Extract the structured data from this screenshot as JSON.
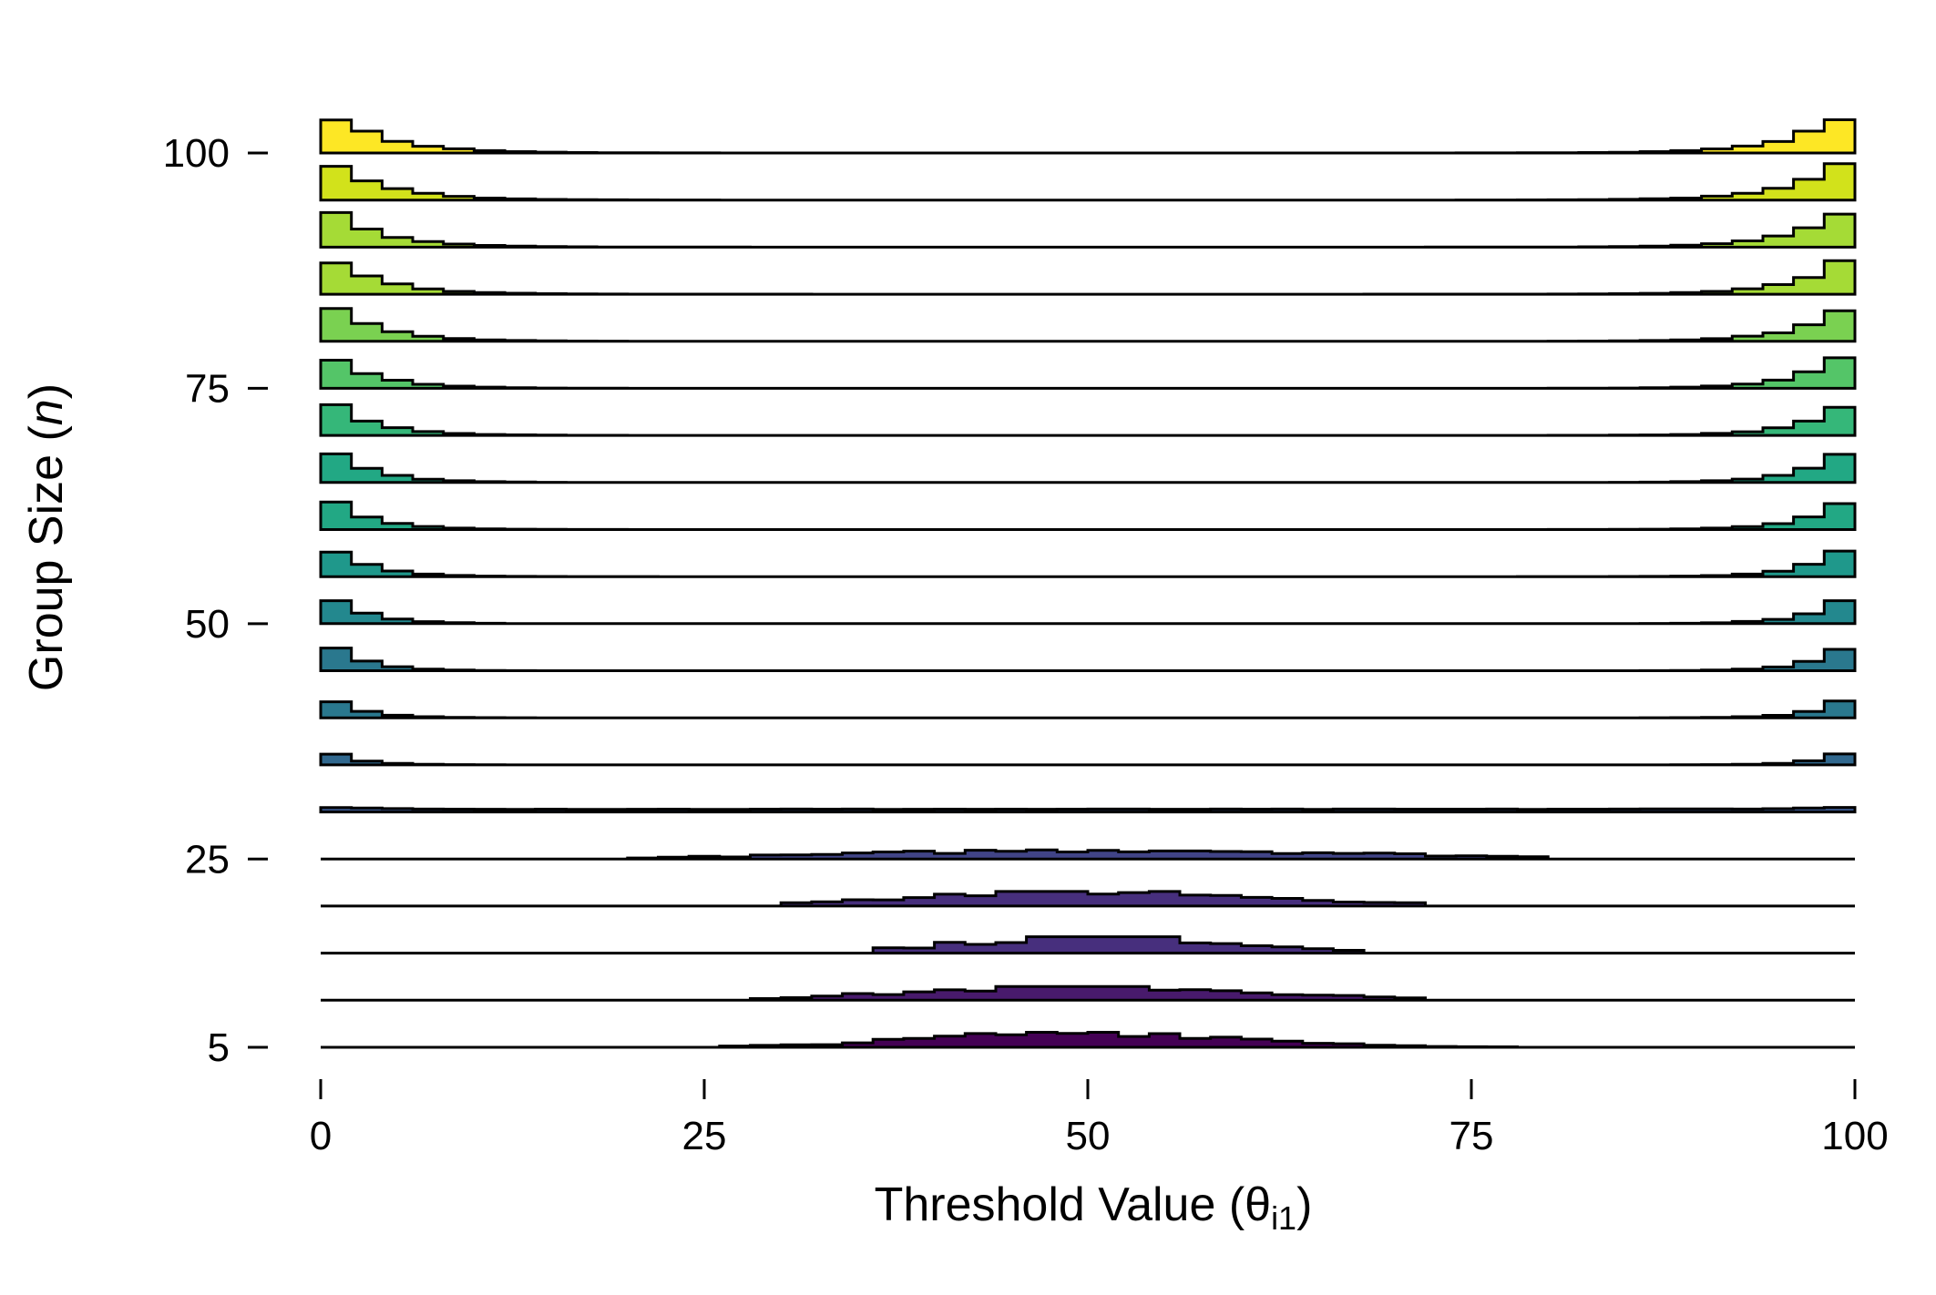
{
  "chart_data": {
    "type": "ridgeline-histogram",
    "title": "",
    "xlabel": "Threshold Value (θ",
    "xlabel_sub": "i1",
    "xlabel_close": ")",
    "ylabel": "Group Size (",
    "ylabel_italic": "n",
    "ylabel_close": ")",
    "xlim": [
      0,
      100
    ],
    "x_ticks": [
      0,
      25,
      50,
      75,
      100
    ],
    "x_tick_labels": [
      "0",
      "25",
      "50",
      "75",
      "100"
    ],
    "y_ticks": [
      5,
      25,
      50,
      75,
      100
    ],
    "y_tick_labels": [
      "5",
      "25",
      "50",
      "75",
      "100"
    ],
    "ylim": [
      5,
      100
    ],
    "grid": false,
    "legend": "none",
    "bin_width": 2,
    "color_scale": "viridis",
    "colors": [
      "#440154",
      "#481a6c",
      "#472f7d",
      "#414487",
      "#39568c",
      "#31688e",
      "#2a788e",
      "#23888e",
      "#1f988b",
      "#22a884",
      "#35b779",
      "#54c568",
      "#7ad151",
      "#a5db36",
      "#d2e21b",
      "#fde725"
    ],
    "series": [
      {
        "group_size": 5,
        "peak_height": 33,
        "shape": "bell",
        "center": 50,
        "spread": 10,
        "range": [
          27,
          78
        ]
      },
      {
        "group_size": 10,
        "peak_height": 30,
        "shape": "bell",
        "center": 50,
        "spread": 11,
        "range": [
          28,
          71
        ]
      },
      {
        "group_size": 15,
        "peak_height": 36,
        "shape": "bell",
        "center": 51,
        "spread": 9,
        "range": [
          36,
          67
        ]
      },
      {
        "group_size": 20,
        "peak_height": 32,
        "shape": "bell",
        "center": 50,
        "spread": 12,
        "range": [
          30,
          72
        ]
      },
      {
        "group_size": 25,
        "peak_height": 20,
        "shape": "bell",
        "center": 52,
        "spread": 16,
        "range": [
          20,
          80
        ]
      },
      {
        "group_size": 30,
        "peak_height": 11,
        "shape": "flat",
        "range": [
          0,
          100
        ]
      },
      {
        "group_size": 35,
        "peak_height": 37,
        "shape": "u",
        "range": [
          0,
          100
        ]
      },
      {
        "group_size": 40,
        "peak_height": 57,
        "shape": "u",
        "range": [
          0,
          100
        ]
      },
      {
        "group_size": 45,
        "peak_height": 73,
        "shape": "u",
        "range": [
          0,
          100
        ]
      },
      {
        "group_size": 50,
        "peak_height": 78,
        "shape": "u",
        "range": [
          0,
          100
        ]
      },
      {
        "group_size": 55,
        "peak_height": 82,
        "shape": "u",
        "range": [
          0,
          100
        ]
      },
      {
        "group_size": 60,
        "peak_height": 85,
        "shape": "u",
        "range": [
          0,
          100
        ]
      },
      {
        "group_size": 65,
        "peak_height": 88,
        "shape": "u",
        "range": [
          0,
          100
        ]
      },
      {
        "group_size": 70,
        "peak_height": 90,
        "shape": "u",
        "range": [
          0,
          100
        ]
      },
      {
        "group_size": 75,
        "peak_height": 92,
        "shape": "u",
        "range": [
          0,
          100
        ]
      },
      {
        "group_size": 80,
        "peak_height": 94,
        "shape": "u",
        "range": [
          0,
          100
        ]
      },
      {
        "group_size": 85,
        "peak_height": 96,
        "shape": "u",
        "range": [
          0,
          100
        ]
      },
      {
        "group_size": 90,
        "peak_height": 98,
        "shape": "u",
        "range": [
          0,
          100
        ]
      },
      {
        "group_size": 95,
        "peak_height": 100,
        "shape": "u",
        "range": [
          0,
          100
        ]
      },
      {
        "group_size": 100,
        "peak_height": 102,
        "shape": "u",
        "range": [
          0,
          100
        ]
      }
    ]
  }
}
